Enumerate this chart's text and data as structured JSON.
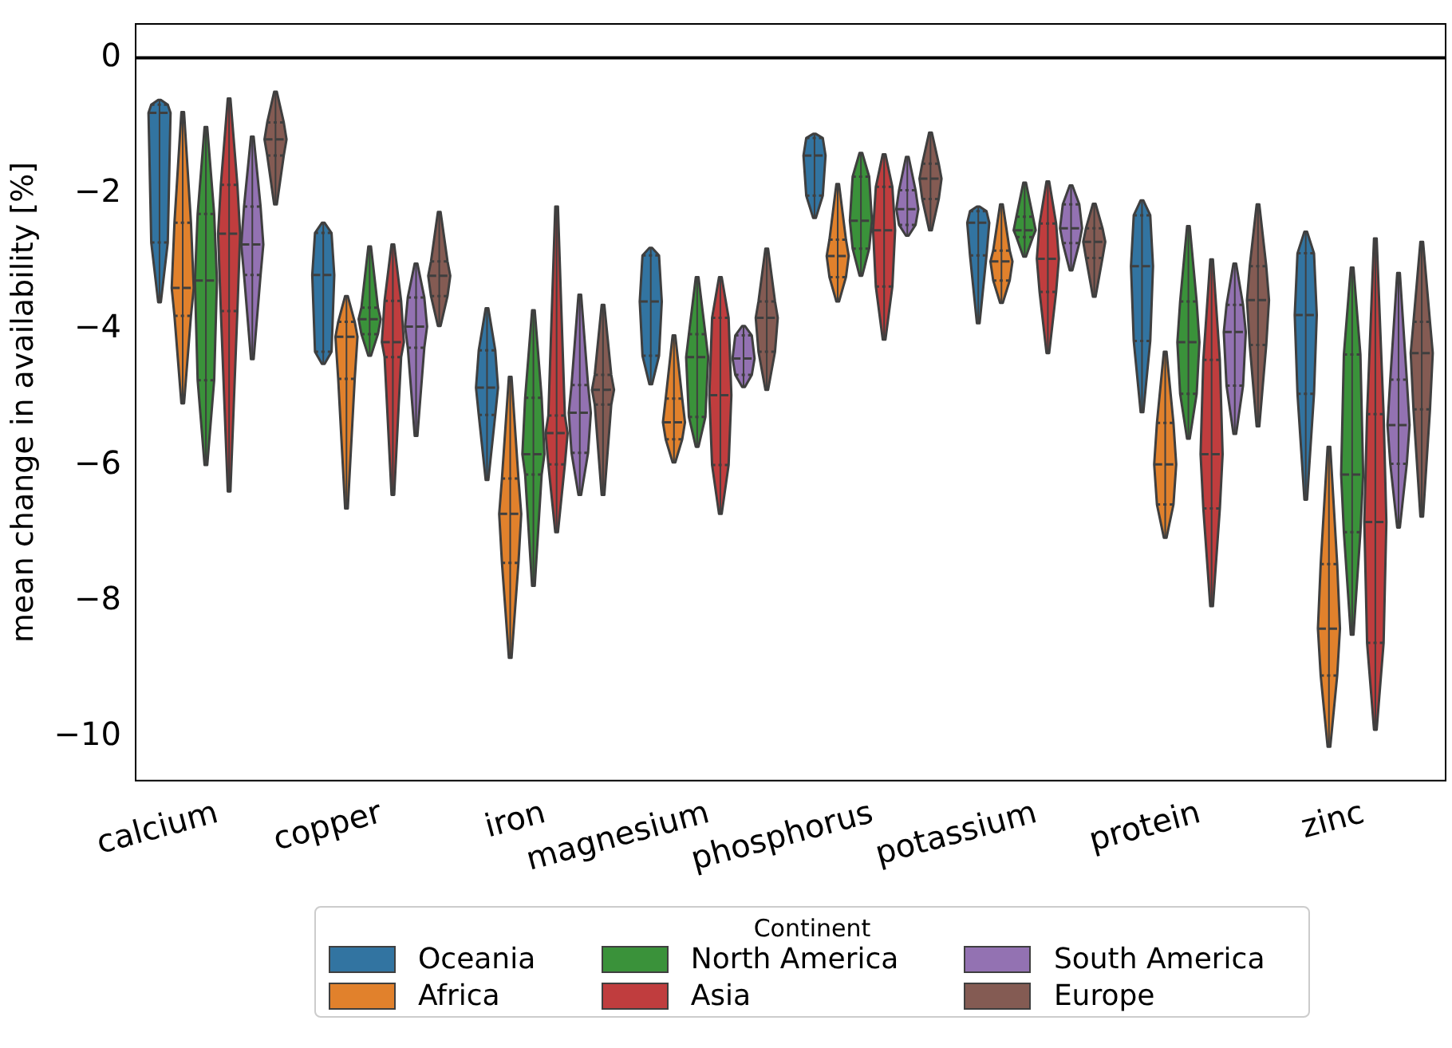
{
  "chart_data": {
    "type": "box",
    "ylabel": "mean change in availability [%]",
    "legend_title": "Continent",
    "legend": "bottom",
    "categories": [
      "calcium",
      "copper",
      "iron",
      "magnesium",
      "phosphorus",
      "potassium",
      "protein",
      "zinc"
    ],
    "ylim": [
      -10.65,
      0.5
    ],
    "yticks": [
      {
        "value": -10,
        "label": "−10"
      },
      {
        "value": -8,
        "label": "−8"
      },
      {
        "value": -6,
        "label": "−6"
      },
      {
        "value": -4,
        "label": "−4"
      },
      {
        "value": -2,
        "label": "−2"
      },
      0
    ],
    "ref_lines": [
      {
        "axis": "y",
        "value": 0,
        "color": "#000000"
      }
    ],
    "series": [
      {
        "name": "Oceania",
        "color": "#3274a1",
        "boxes": [
          {
            "low": -3.6,
            "q1": -2.72,
            "median": -0.81,
            "q3": -0.69,
            "high": -0.62
          },
          {
            "low": -4.51,
            "q1": -4.33,
            "median": -3.2,
            "q3": -2.58,
            "high": -2.43
          },
          {
            "low": -6.22,
            "q1": -5.26,
            "median": -4.86,
            "q3": -4.31,
            "high": -3.69
          },
          {
            "low": -4.81,
            "q1": -4.39,
            "median": -3.59,
            "q3": -2.91,
            "high": -2.8
          },
          {
            "low": -2.36,
            "q1": -2.03,
            "median": -1.44,
            "q3": -1.18,
            "high": -1.12
          },
          {
            "low": -3.91,
            "q1": -2.91,
            "median": -2.43,
            "q3": -2.26,
            "high": -2.19
          },
          {
            "low": -5.22,
            "q1": -4.17,
            "median": -3.07,
            "q3": -2.32,
            "high": -2.1
          },
          {
            "low": -6.51,
            "q1": -4.95,
            "median": -3.79,
            "q3": -2.88,
            "high": -2.56
          }
        ]
      },
      {
        "name": "Africa",
        "color": "#e1812c",
        "boxes": [
          {
            "low": -5.09,
            "q1": -3.8,
            "median": -3.39,
            "q3": -2.43,
            "high": -0.8
          },
          {
            "low": -6.64,
            "q1": -4.73,
            "median": -4.11,
            "q3": -3.89,
            "high": -3.51
          },
          {
            "low": -8.84,
            "q1": -7.44,
            "median": -6.72,
            "q3": -6.2,
            "high": -4.7
          },
          {
            "low": -5.96,
            "q1": -5.62,
            "median": -5.37,
            "q3": -5.02,
            "high": -4.09
          },
          {
            "low": -3.59,
            "q1": -3.23,
            "median": -2.92,
            "q3": -2.68,
            "high": -1.86
          },
          {
            "low": -3.61,
            "q1": -3.28,
            "median": -3.0,
            "q3": -2.84,
            "high": -2.16
          },
          {
            "low": -7.07,
            "q1": -6.58,
            "median": -5.99,
            "q3": -5.38,
            "high": -4.33
          },
          {
            "low": -10.15,
            "q1": -9.1,
            "median": -8.41,
            "q3": -7.46,
            "high": -5.73
          }
        ]
      },
      {
        "name": "North America",
        "color": "#3a923a",
        "boxes": [
          {
            "low": -6.0,
            "q1": -4.75,
            "median": -3.28,
            "q3": -2.3,
            "high": -1.02
          },
          {
            "low": -4.39,
            "q1": -4.07,
            "median": -3.85,
            "q3": -3.68,
            "high": -2.78
          },
          {
            "low": -7.78,
            "q1": -6.14,
            "median": -5.84,
            "q3": -5.01,
            "high": -3.72
          },
          {
            "low": -5.73,
            "q1": -5.29,
            "median": -4.41,
            "q3": -4.07,
            "high": -3.23
          },
          {
            "low": -3.21,
            "q1": -2.81,
            "median": -2.4,
            "q3": -1.75,
            "high": -1.4
          },
          {
            "low": -2.93,
            "q1": -2.64,
            "median": -2.54,
            "q3": -2.34,
            "high": -1.84
          },
          {
            "low": -5.61,
            "q1": -4.95,
            "median": -4.19,
            "q3": -3.59,
            "high": -2.48
          },
          {
            "low": -8.5,
            "q1": -6.99,
            "median": -6.14,
            "q3": -4.37,
            "high": -3.09
          }
        ]
      },
      {
        "name": "Asia",
        "color": "#c03d3e",
        "boxes": [
          {
            "low": -6.39,
            "q1": -3.73,
            "median": -2.59,
            "q3": -1.87,
            "high": -0.6
          },
          {
            "low": -6.44,
            "q1": -4.41,
            "median": -4.19,
            "q3": -3.58,
            "high": -2.75
          },
          {
            "low": -6.99,
            "q1": -5.99,
            "median": -5.53,
            "q3": -5.27,
            "high": -2.19
          },
          {
            "low": -6.72,
            "q1": -6.0,
            "median": -4.97,
            "q3": -3.83,
            "high": -3.23
          },
          {
            "low": -4.15,
            "q1": -3.37,
            "median": -2.54,
            "q3": -1.9,
            "high": -1.42
          },
          {
            "low": -4.35,
            "q1": -3.45,
            "median": -2.96,
            "q3": -2.44,
            "high": -1.82
          },
          {
            "low": -8.08,
            "q1": -6.64,
            "median": -5.84,
            "q3": -4.45,
            "high": -2.97
          },
          {
            "low": -9.9,
            "q1": -8.62,
            "median": -6.84,
            "q3": -5.25,
            "high": -2.66
          }
        ]
      },
      {
        "name": "South America",
        "color": "#9372b2",
        "boxes": [
          {
            "low": -4.44,
            "q1": -3.2,
            "median": -2.75,
            "q3": -2.19,
            "high": -1.16
          },
          {
            "low": -5.57,
            "q1": -4.27,
            "median": -3.96,
            "q3": -3.53,
            "high": -3.03
          },
          {
            "low": -6.44,
            "q1": -5.82,
            "median": -5.23,
            "q3": -4.82,
            "high": -3.49
          },
          {
            "low": -4.85,
            "q1": -4.67,
            "median": -4.43,
            "q3": -4.09,
            "high": -3.95
          },
          {
            "low": -2.62,
            "q1": -2.46,
            "median": -2.23,
            "q3": -1.95,
            "high": -1.46
          },
          {
            "low": -3.13,
            "q1": -2.73,
            "median": -2.51,
            "q3": -2.16,
            "high": -1.88
          },
          {
            "low": -5.54,
            "q1": -4.83,
            "median": -4.04,
            "q3": -3.64,
            "high": -3.03
          },
          {
            "low": -6.92,
            "q1": -5.98,
            "median": -5.41,
            "q3": -4.74,
            "high": -3.17
          }
        ]
      },
      {
        "name": "Europe",
        "color": "#845b53",
        "boxes": [
          {
            "low": -2.16,
            "q1": -1.44,
            "median": -1.2,
            "q3": -0.95,
            "high": -0.5
          },
          {
            "low": -3.95,
            "q1": -3.51,
            "median": -3.21,
            "q3": -3.0,
            "high": -2.27
          },
          {
            "low": -6.44,
            "q1": -5.11,
            "median": -4.89,
            "q3": -4.67,
            "high": -3.64
          },
          {
            "low": -4.89,
            "q1": -4.33,
            "median": -3.83,
            "q3": -3.59,
            "high": -2.81
          },
          {
            "low": -2.54,
            "q1": -2.08,
            "median": -1.78,
            "q3": -1.56,
            "high": -1.1
          },
          {
            "low": -3.52,
            "q1": -2.95,
            "median": -2.71,
            "q3": -2.51,
            "high": -2.15
          },
          {
            "low": -5.43,
            "q1": -4.23,
            "median": -3.57,
            "q3": -3.07,
            "high": -2.16
          },
          {
            "low": -6.76,
            "q1": -5.18,
            "median": -4.35,
            "q3": -3.89,
            "high": -2.71
          }
        ]
      }
    ]
  }
}
